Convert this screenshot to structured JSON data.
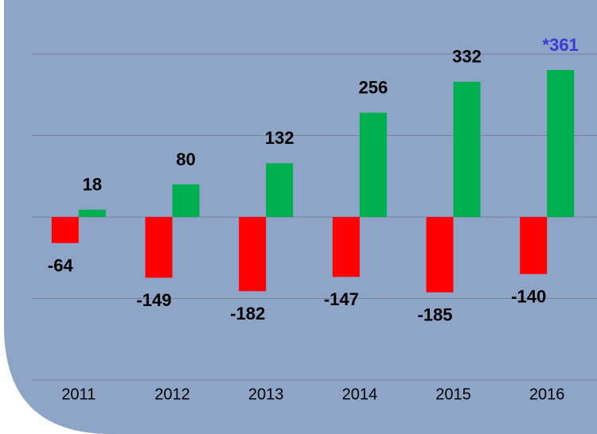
{
  "chart_data": {
    "type": "bar",
    "categories": [
      "2011",
      "2012",
      "2013",
      "2014",
      "2015",
      "2016"
    ],
    "series": [
      {
        "color": "#ff0000",
        "values": [
          -64,
          -149,
          -182,
          -147,
          -185,
          -140
        ]
      },
      {
        "color": "#00b050",
        "values": [
          18,
          80,
          132,
          256,
          332,
          361
        ],
        "value_labels": [
          "18",
          "80",
          "132",
          "256",
          "332",
          "*361"
        ],
        "value_label_colors": [
          "#000000",
          "#000000",
          "#000000",
          "#000000",
          "#000000",
          "#3a3ad6"
        ]
      }
    ],
    "ylim": [
      -400,
      400
    ],
    "yticks": [
      -400,
      -200,
      0,
      200,
      400
    ],
    "grid": true
  }
}
